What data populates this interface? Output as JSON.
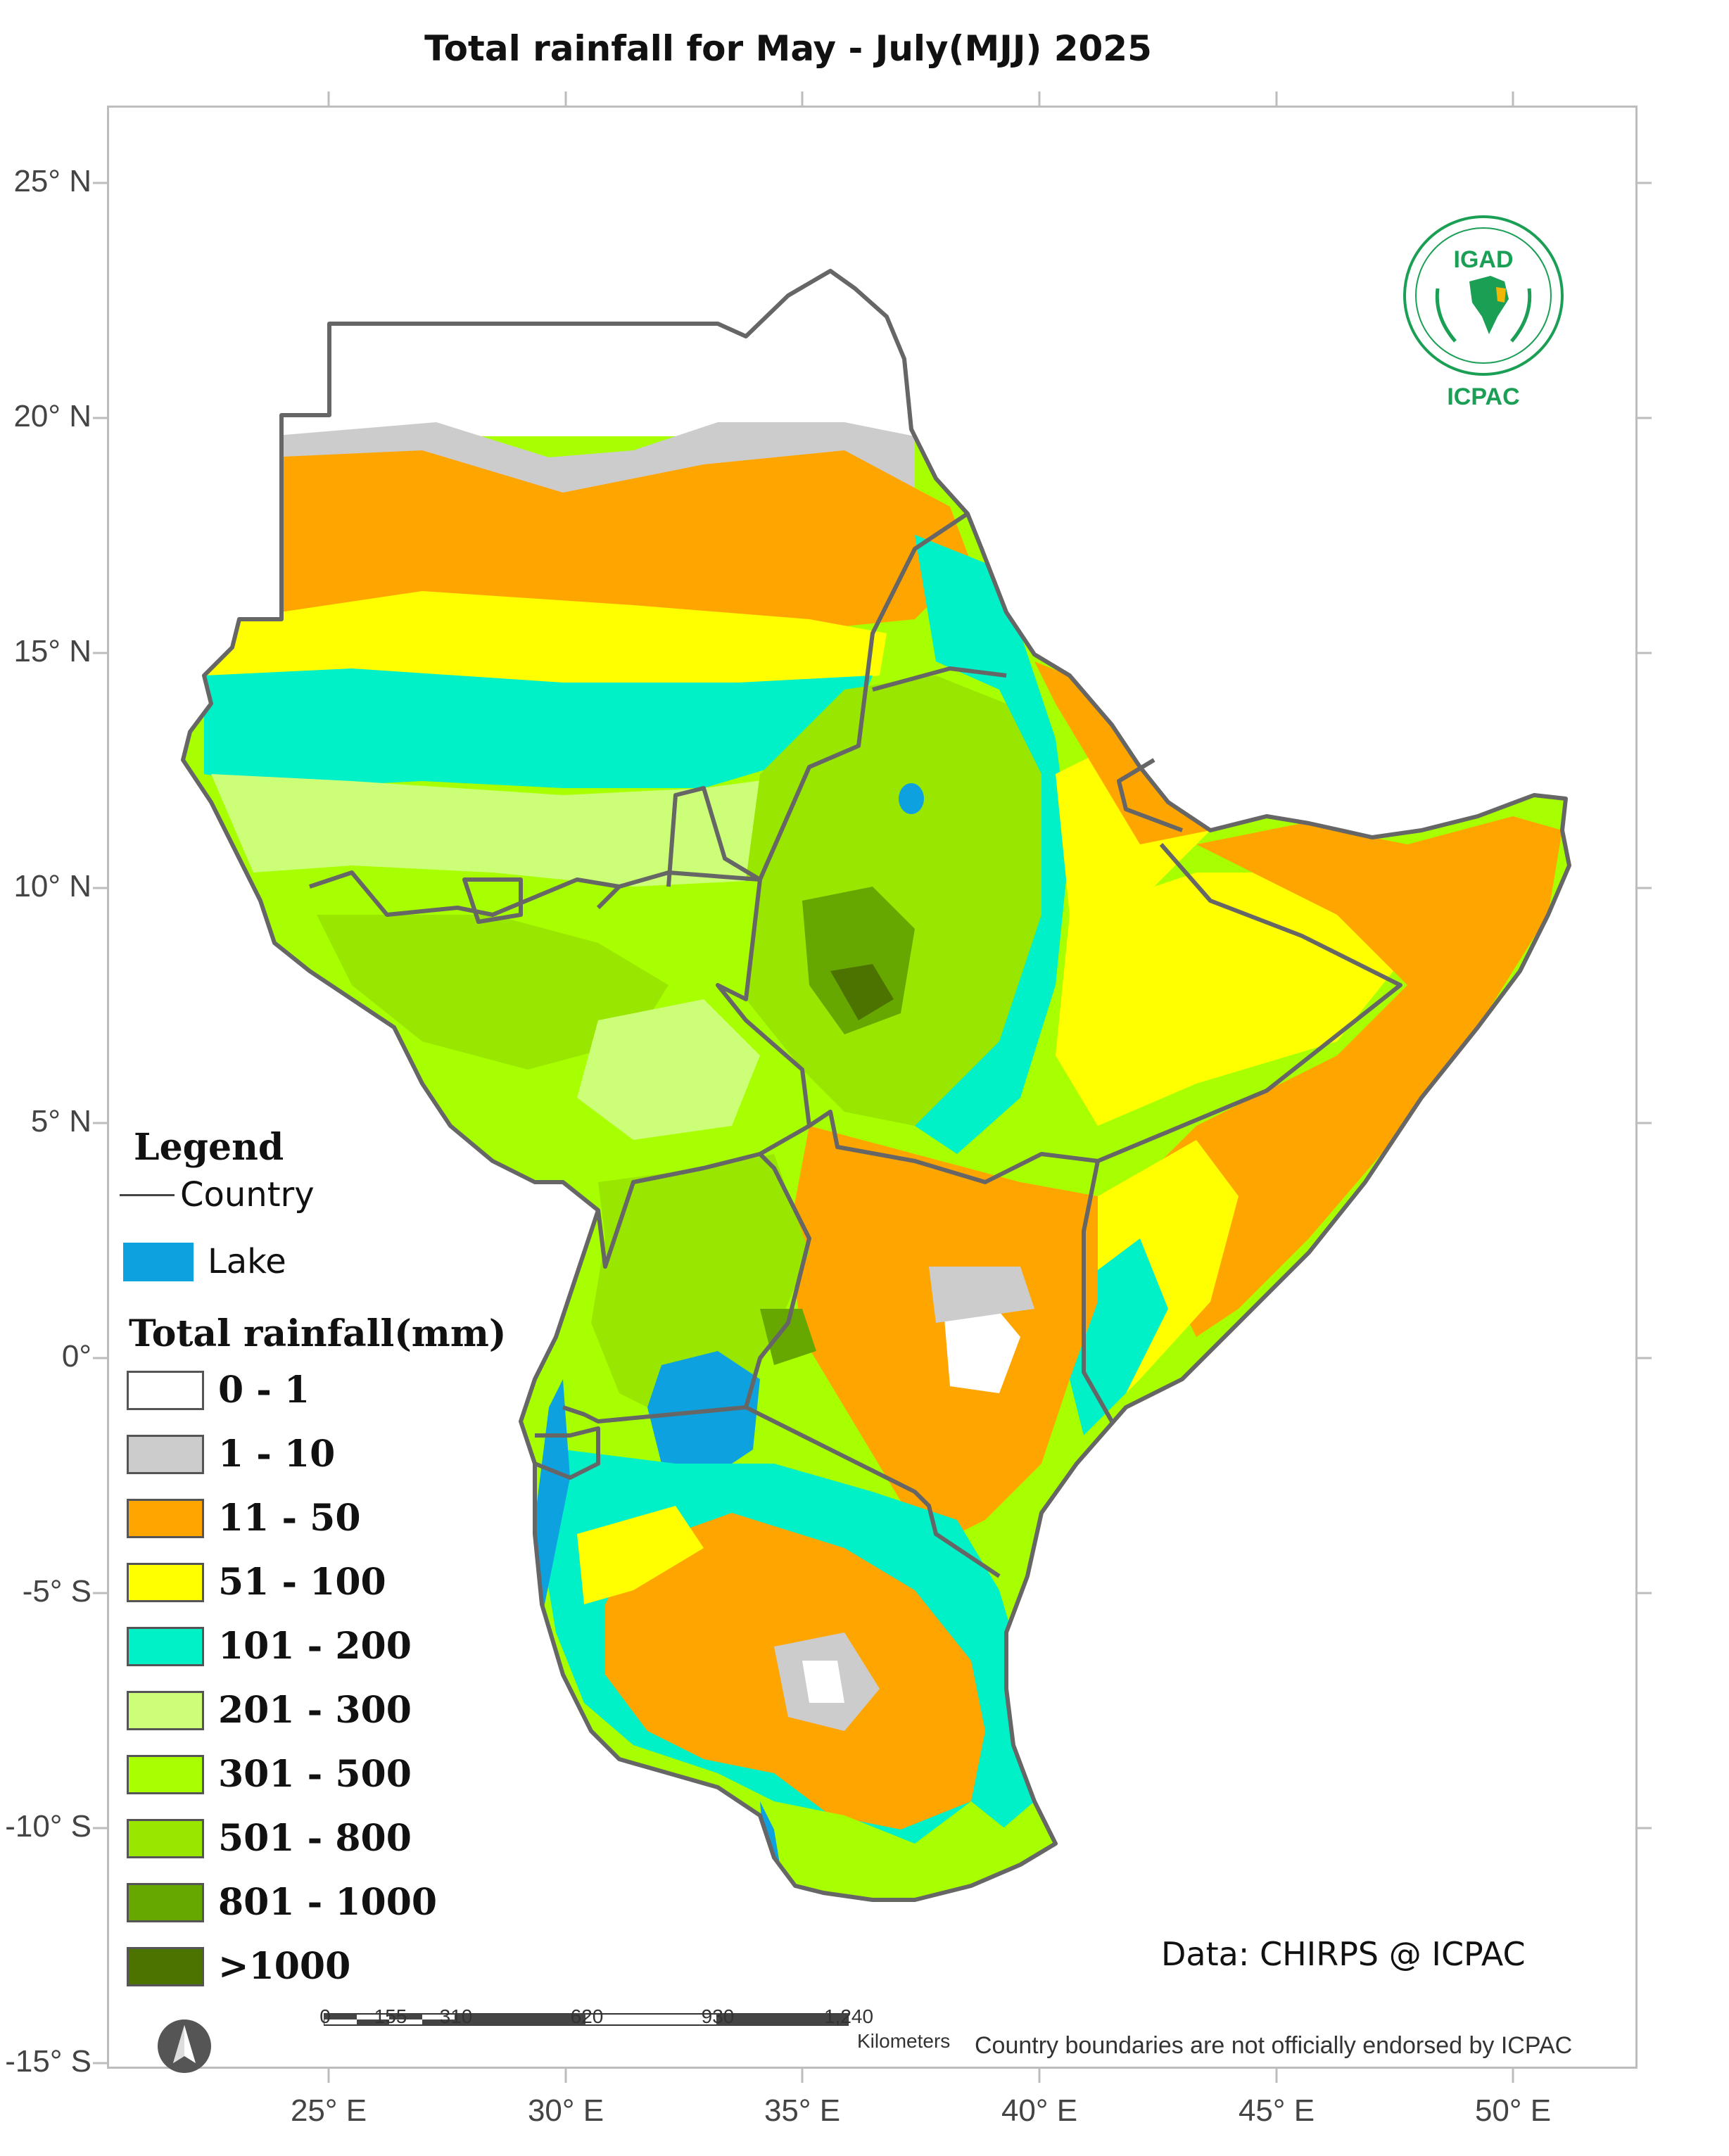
{
  "title": "Total rainfall for May - July(MJJ) 2025",
  "axes": {
    "lat_labels": [
      "25° N",
      "20° N",
      "15° N",
      "10° N",
      "5° N",
      "0°",
      "-5° S",
      "-10° S",
      "-15° S"
    ],
    "lon_labels": [
      "25° E",
      "30° E",
      "35° E",
      "40° E",
      "45° E",
      "50° E"
    ]
  },
  "legend": {
    "title": "Legend",
    "country_label": "Country",
    "lake_label": "Lake",
    "rain_title": "Total rainfall(mm)",
    "classes": [
      {
        "label": "0 - 1",
        "color": "#ffffff"
      },
      {
        "label": "1 - 10",
        "color": "#cccccc"
      },
      {
        "label": "11 - 50",
        "color": "#ffa500"
      },
      {
        "label": "51 - 100",
        "color": "#ffff00"
      },
      {
        "label": "101 - 200",
        "color": "#00f0c8"
      },
      {
        "label": "201 - 300",
        "color": "#ccff77"
      },
      {
        "label": "301 - 500",
        "color": "#a8ff00"
      },
      {
        "label": "501 - 800",
        "color": "#99e600"
      },
      {
        "label": "801 - 1000",
        "color": "#66a800"
      },
      {
        "label": ">1000",
        "color": "#4c7300"
      }
    ]
  },
  "scale_bar": {
    "ticks": [
      "0",
      "155",
      "310",
      "620",
      "930",
      "1,240"
    ],
    "unit": "Kilometers"
  },
  "credit": "Data: CHIRPS @ ICPAC",
  "disclaimer": "Country boundaries are not officially endorsed by ICPAC",
  "logo": {
    "top_text": "IGAD",
    "bottom_text": "ICPAC"
  },
  "colors": {
    "lake": "#0ea1e0",
    "boundary": "#666666"
  }
}
